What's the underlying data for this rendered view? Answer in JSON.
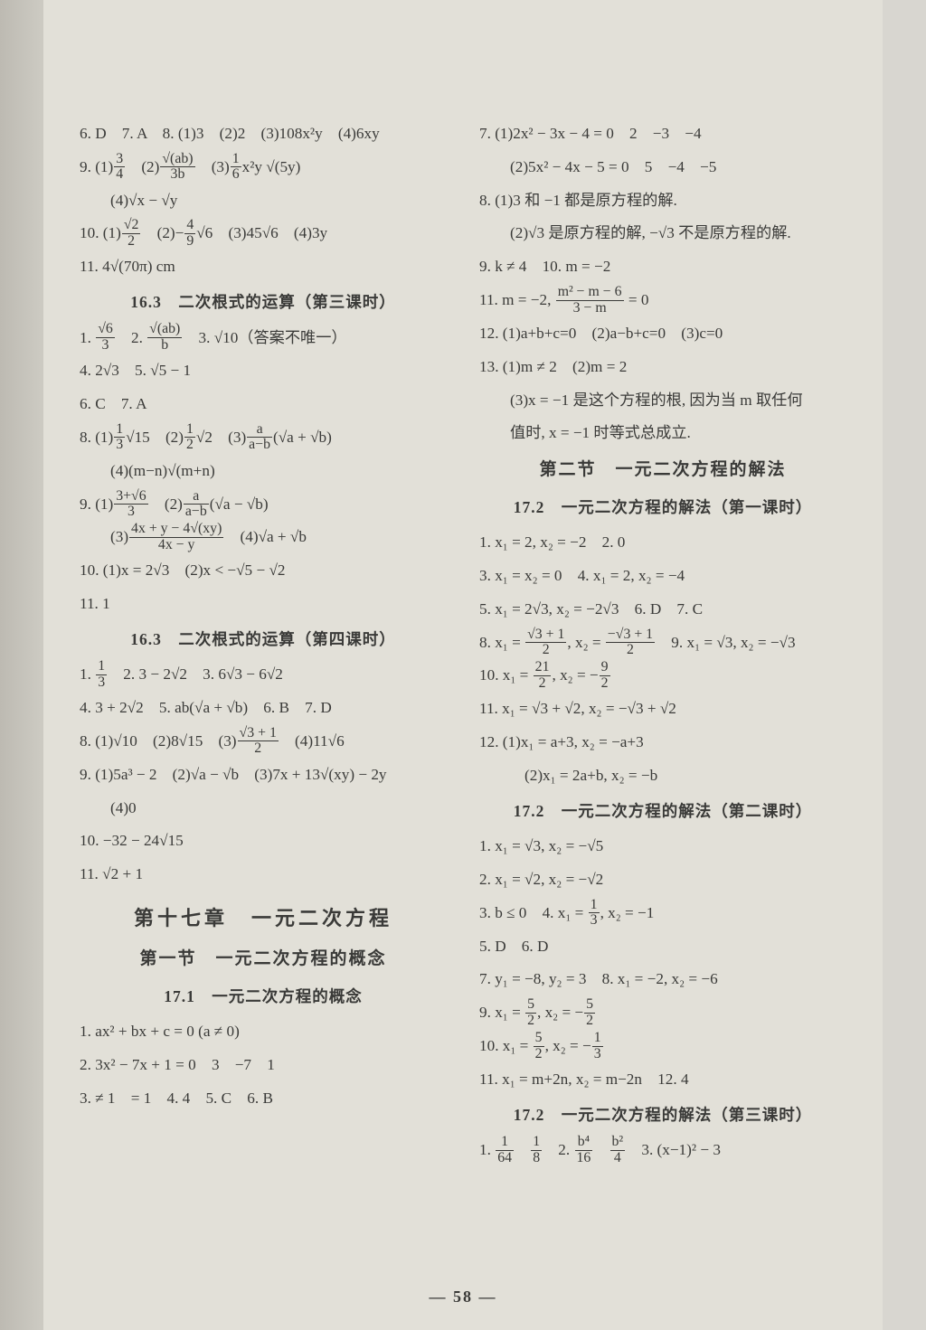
{
  "page_number": "58",
  "colors": {
    "bg": "#d8d6d0",
    "paper": "#e2e0d8",
    "text": "#3a3a38"
  },
  "typography": {
    "body_fontsize_pt": 13,
    "heading_fontsize_pt": 14,
    "chapter_fontsize_pt": 17
  },
  "left": {
    "l1": "6. D　7. A　8. (1)3　(2)2　(3)108x²y　(4)6xy",
    "l2a": "9. (1)",
    "l2b": "　(2)",
    "l2c": "　(3)",
    "l2d": "x²y √(5y)",
    "l3": "(4)√x − √y",
    "l4a": "10. (1)",
    "l4b": "　(2)−",
    "l4c": "√6　(3)45√6　(4)3y",
    "l5": "11. 4√(70π)  cm",
    "h1": "16.3　二次根式的运算（第三课时）",
    "l6a": "1. ",
    "l6b": "　2. ",
    "l6c": "　3. √10（答案不唯一）",
    "l7": "4. 2√3　5. √5 − 1",
    "l8": "6. C　7. A",
    "l9a": "8. (1)",
    "l9b": "√15　(2)",
    "l9c": "√2　(3)",
    "l9d": "(√a + √b)",
    "l10": "(4)(m−n)√(m+n)",
    "l11a": "9. (1)",
    "l11b": "　(2)",
    "l11c": "(√a − √b)",
    "l12a": "(3)",
    "l12b": "　(4)√a + √b",
    "l13": "10. (1)x = 2√3　(2)x < −√5 − √2",
    "l14": "11. 1",
    "h2": "16.3　二次根式的运算（第四课时）",
    "l15a": "1. ",
    "l15b": "　2. 3 − 2√2　3. 6√3 − 6√2",
    "l16": "4. 3 + 2√2　5. ab(√a + √b)　6. B　7. D",
    "l17a": "8. (1)√10　(2)8√15　(3)",
    "l17b": "　(4)11√6",
    "l18": "9. (1)5a³ − 2　(2)√a − √b　(3)7x + 13√(xy) − 2y",
    "l19": "(4)0",
    "l20": "10. −32 − 24√15",
    "l21": "11. √2 + 1",
    "ch": "第十七章　一元二次方程",
    "sec1": "第一节　一元二次方程的概念",
    "h3": "17.1　一元二次方程的概念",
    "l22": "1. ax² + bx + c = 0 (a ≠ 0)",
    "l23": "2. 3x² − 7x + 1 = 0　3　−7　1",
    "l24": "3. ≠ 1　= 1　4. 4　5. C　6. B",
    "frac_9_1": {
      "n": "3",
      "d": "4"
    },
    "frac_9_2": {
      "n": "√(ab)",
      "d": "3b"
    },
    "frac_9_3": {
      "n": "1",
      "d": "6"
    },
    "frac_10_1": {
      "n": "√2",
      "d": "2"
    },
    "frac_10_2": {
      "n": "4",
      "d": "9"
    },
    "frac_s1_1": {
      "n": "√6",
      "d": "3"
    },
    "frac_s1_2": {
      "n": "√(ab)",
      "d": "b"
    },
    "frac_8_1": {
      "n": "1",
      "d": "3"
    },
    "frac_8_2": {
      "n": "1",
      "d": "2"
    },
    "frac_8_3": {
      "n": "a",
      "d": "a−b"
    },
    "frac_9b_1": {
      "n": "3+√6",
      "d": "3"
    },
    "frac_9b_2": {
      "n": "a",
      "d": "a−b"
    },
    "frac_9b_3": {
      "n": "4x + y − 4√(xy)",
      "d": "4x − y"
    },
    "frac_s4_1": {
      "n": "1",
      "d": "3"
    },
    "frac_s4_8": {
      "n": "√3 + 1",
      "d": "2"
    }
  },
  "right": {
    "l1": "7. (1)2x² − 3x − 4 = 0　2　−3　−4",
    "l2": "(2)5x² − 4x − 5 = 0　5　−4　−5",
    "l3": "8. (1)3 和 −1 都是原方程的解.",
    "l4": "(2)√3 是原方程的解, −√3 不是原方程的解.",
    "l5": "9. k ≠ 4　10. m = −2",
    "l6a": "11. m = −2, ",
    "l6b": " = 0",
    "l7": "12. (1)a+b+c=0　(2)a−b+c=0　(3)c=0",
    "l8": "13. (1)m ≠ 2　(2)m = 2",
    "l9": "(3)x = −1 是这个方程的根, 因为当 m 取任何",
    "l10": "值时, x = −1 时等式总成立.",
    "sec2": "第二节　一元二次方程的解法",
    "h4": "17.2　一元二次方程的解法（第一课时）",
    "l11": "1. x₁ = 2, x₂ = −2　2. 0",
    "l12": "3. x₁ = x₂ = 0　4. x₁ = 2, x₂ = −4",
    "l13": "5. x₁ = 2√3, x₂ = −2√3　6. D　7. C",
    "l14a": "8. x₁ = ",
    "l14b": ", x₂ = ",
    "l14c": "　9. x₁ = √3, x₂ = −√3",
    "l15a": "10. x₁ = ",
    "l15b": ", x₂ = −",
    "l16": "11.  x₁ = √3 + √2, x₂ = −√3 + √2",
    "l17": "12. (1)x₁ = a+3, x₂ = −a+3",
    "l18": "(2)x₁ = 2a+b, x₂ = −b",
    "h5": "17.2　一元二次方程的解法（第二课时）",
    "l19": "1. x₁ = √3, x₂ = −√5",
    "l20": "2. x₁ = √2, x₂ = −√2",
    "l21a": "3.  b ≤ 0　4.  x₁ = ",
    "l21b": ", x₂ = −1",
    "l22": "5. D　6. D",
    "l23": "7. y₁ = −8, y₂ = 3　8. x₁ = −2, x₂ = −6",
    "l24a": "9. x₁ = ",
    "l24b": ", x₂ = −",
    "l25a": "10. x₁ = ",
    "l25b": ", x₂ = −",
    "l26": "11. x₁ = m+2n, x₂ = m−2n　12. 4",
    "h6": "17.2　一元二次方程的解法（第三课时）",
    "l27a": "1. ",
    "l27b": "　",
    "l27c": "　2. ",
    "l27d": "　",
    "l27e": "　3. (x−1)² − 3",
    "frac_11": {
      "n": "m² − m − 6",
      "d": "3 − m"
    },
    "frac_8a": {
      "n": "√3 + 1",
      "d": "2"
    },
    "frac_8b": {
      "n": "−√3 + 1",
      "d": "2"
    },
    "frac_10a": {
      "n": "21",
      "d": "2"
    },
    "frac_10b": {
      "n": "9",
      "d": "2"
    },
    "frac_4": {
      "n": "1",
      "d": "3"
    },
    "frac_9a": {
      "n": "5",
      "d": "2"
    },
    "frac_9b": {
      "n": "5",
      "d": "2"
    },
    "frac_r10a": {
      "n": "5",
      "d": "2"
    },
    "frac_r10b": {
      "n": "1",
      "d": "3"
    },
    "frac_t1a": {
      "n": "1",
      "d": "64"
    },
    "frac_t1b": {
      "n": "1",
      "d": "8"
    },
    "frac_t2a": {
      "n": "b⁴",
      "d": "16"
    },
    "frac_t2b": {
      "n": "b²",
      "d": "4"
    }
  }
}
